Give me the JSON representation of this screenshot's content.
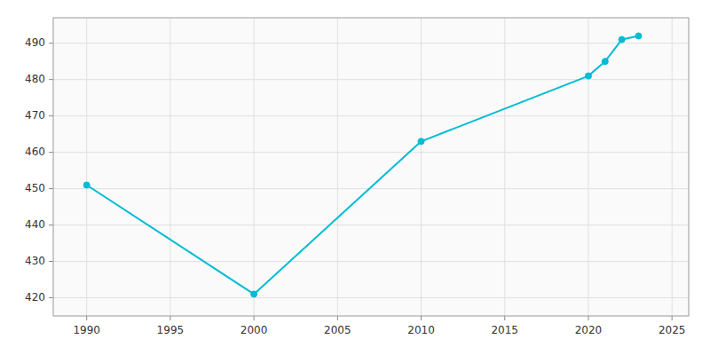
{
  "chart_data": {
    "type": "line",
    "x": [
      1990,
      2000,
      2010,
      2020,
      2021,
      2022,
      2023
    ],
    "values": [
      451,
      421,
      463,
      481,
      485,
      491,
      492
    ],
    "color": "#00bcd4",
    "marker": "circle",
    "xlim": [
      1988,
      2026
    ],
    "ylim": [
      415,
      497
    ],
    "xticks": [
      1990,
      1995,
      2000,
      2005,
      2010,
      2015,
      2020,
      2025
    ],
    "yticks": [
      420,
      430,
      440,
      450,
      460,
      470,
      480,
      490
    ],
    "grid": true
  }
}
